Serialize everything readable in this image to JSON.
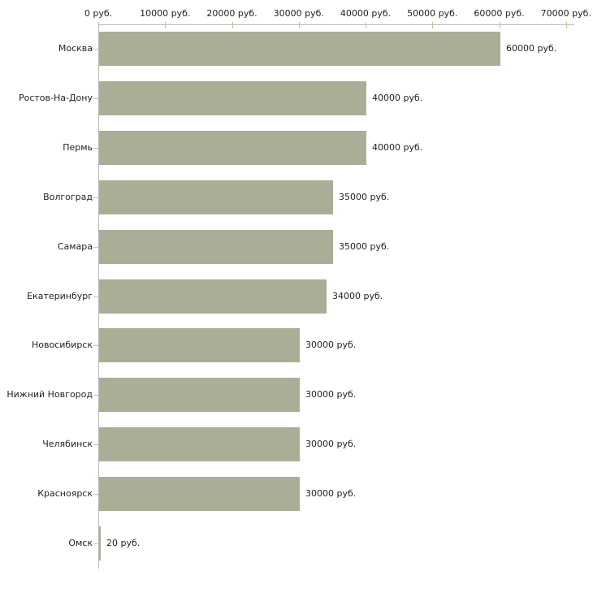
{
  "chart_data": {
    "type": "bar",
    "orientation": "horizontal",
    "title": "",
    "xlabel": "",
    "ylabel": "",
    "unit": "руб.",
    "grid": false,
    "legend": "none",
    "categories": [
      "Москва",
      "Ростов-На-Дону",
      "Пермь",
      "Волгоград",
      "Самара",
      "Екатеринбург",
      "Новосибирск",
      "Нижний Новгород",
      "Челябинск",
      "Красноярск",
      "Омск"
    ],
    "values": [
      60000,
      40000,
      40000,
      35000,
      35000,
      34000,
      30000,
      30000,
      30000,
      30000,
      20
    ],
    "value_labels": [
      "60000 руб.",
      "40000 руб.",
      "40000 руб.",
      "35000 руб.",
      "35000 руб.",
      "34000 руб.",
      "30000 руб.",
      "30000 руб.",
      "30000 руб.",
      "30000 руб.",
      "20 руб."
    ],
    "x_axis": {
      "position": "top",
      "min": 0,
      "max": 70000,
      "tick_values": [
        0,
        10000,
        20000,
        30000,
        40000,
        50000,
        60000,
        70000
      ],
      "tick_labels": [
        "0 руб.",
        "10000 руб.",
        "20000 руб.",
        "30000 руб.",
        "40000 руб.",
        "50000 руб.",
        "60000 руб.",
        "70000 руб."
      ]
    },
    "colors": {
      "bar": "#a9af97",
      "axis_line": "#b8b8b8",
      "tick": "#c2c28e",
      "category_tick": "#c6c696",
      "text": "#1f1f1f",
      "background": "#ffffff"
    }
  }
}
